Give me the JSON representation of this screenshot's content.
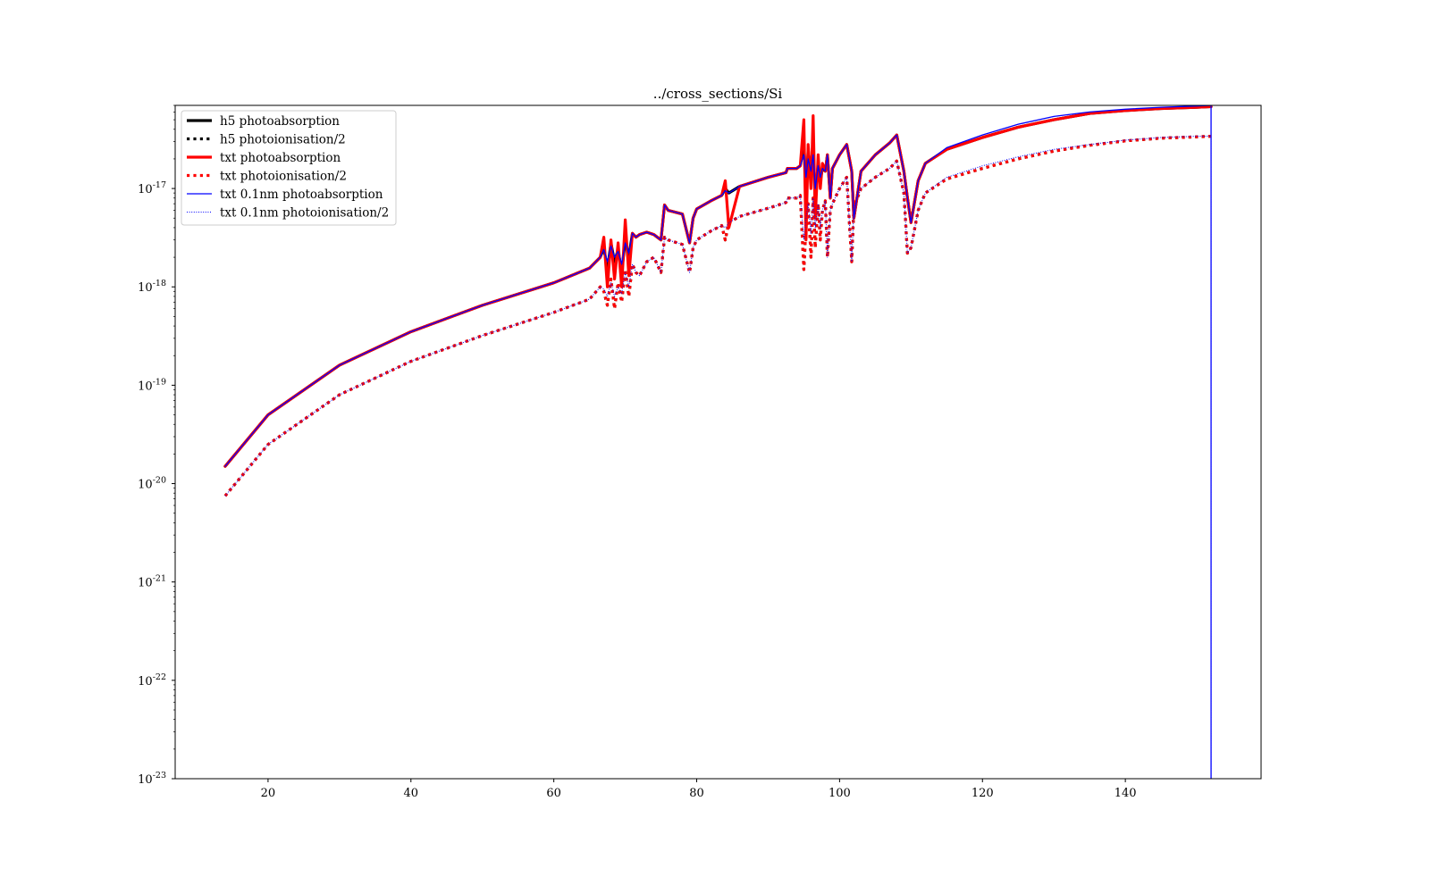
{
  "chart_data": {
    "type": "line",
    "title": "../cross_sections/Si",
    "xlabel": "",
    "ylabel": "",
    "xlim": [
      7,
      159
    ],
    "ylim": [
      1e-23,
      7e-17
    ],
    "yscale": "log",
    "grid": false,
    "legend_position": "upper-left",
    "x_ticks": [
      20,
      40,
      60,
      80,
      100,
      120,
      140
    ],
    "x_tick_labels": [
      "20",
      "40",
      "60",
      "80",
      "100",
      "120",
      "140"
    ],
    "y_ticks": [
      1e-23,
      1e-22,
      1e-21,
      1e-20,
      1e-19,
      1e-18,
      1e-17
    ],
    "y_tick_labels": [
      {
        "base": "10",
        "exp": "-23"
      },
      {
        "base": "10",
        "exp": "-22"
      },
      {
        "base": "10",
        "exp": "-21"
      },
      {
        "base": "10",
        "exp": "-20"
      },
      {
        "base": "10",
        "exp": "-19"
      },
      {
        "base": "10",
        "exp": "-18"
      },
      {
        "base": "10",
        "exp": "-17"
      }
    ],
    "series": [
      {
        "name": "h5 photoabsorption",
        "color": "#000000",
        "style": "solid",
        "x": [
          14,
          20,
          30,
          40,
          50,
          60,
          65,
          66.5,
          67,
          67.5,
          68,
          68.5,
          69,
          69.5,
          70,
          70.5,
          71,
          71.5,
          72,
          73,
          74,
          75,
          75.5,
          76,
          78,
          79,
          79.5,
          80,
          82,
          83.5,
          84,
          84.5,
          86,
          90,
          92.5,
          92.7,
          94,
          94.5,
          95,
          95.3,
          95.6,
          96,
          96.3,
          96.6,
          97,
          97.3,
          97.6,
          98,
          98.3,
          98.7,
          99,
          100,
          101,
          101.7,
          102,
          103,
          105,
          107,
          108,
          109,
          109.5,
          110,
          111,
          112,
          115,
          120,
          125,
          130,
          135,
          140,
          145,
          150,
          152
        ],
        "y": [
          1.5e-20,
          5e-20,
          1.6e-19,
          3.5e-19,
          6.5e-19,
          1.1e-18,
          1.55e-18,
          2e-18,
          2.5e-18,
          1.5e-18,
          2.8e-18,
          1.8e-18,
          2.4e-18,
          1.4e-18,
          3e-18,
          2e-18,
          3.5e-18,
          3.2e-18,
          3.4e-18,
          3.6e-18,
          3.4e-18,
          3e-18,
          6.8e-18,
          6e-18,
          5.5e-18,
          2.8e-18,
          5e-18,
          6.2e-18,
          7.5e-18,
          8.5e-18,
          1e-17,
          9e-18,
          1.05e-17,
          1.3e-17,
          1.45e-17,
          1.6e-17,
          1.6e-17,
          1.7e-17,
          3e-17,
          8e-18,
          2.5e-17,
          1.4e-17,
          2.8e-17,
          7e-18,
          1.8e-17,
          1.2e-17,
          1.6e-17,
          1.5e-17,
          2.2e-17,
          8e-18,
          1.6e-17,
          2.2e-17,
          2.8e-17,
          1.5e-17,
          5e-18,
          1.5e-17,
          2.2e-17,
          2.9e-17,
          3.5e-17,
          1.5e-17,
          8e-18,
          4.5e-18,
          1.2e-17,
          1.8e-17,
          2.5e-17,
          3.3e-17,
          4.2e-17,
          5e-17,
          5.8e-17,
          6.2e-17,
          6.5e-17,
          6.7e-17,
          6.8e-17
        ]
      },
      {
        "name": "h5 photoionisation/2",
        "color": "#000000",
        "style": "dotted",
        "x": [
          14,
          20,
          30,
          40,
          50,
          60,
          65,
          66.5,
          67,
          67.5,
          68,
          68.5,
          69,
          69.5,
          70,
          70.5,
          71,
          71.5,
          72,
          73,
          74,
          75,
          75.5,
          76,
          78,
          79,
          79.5,
          80,
          82,
          83.5,
          84,
          84.5,
          86,
          90,
          92.5,
          92.7,
          94,
          94.5,
          95,
          95.3,
          95.6,
          96,
          96.3,
          96.6,
          97,
          97.3,
          97.6,
          98,
          98.3,
          98.7,
          99,
          100,
          101,
          101.7,
          102,
          103,
          105,
          107,
          108,
          109,
          109.5,
          110,
          111,
          112,
          115,
          120,
          125,
          130,
          135,
          140,
          145,
          150,
          152
        ],
        "y": [
          7.5e-21,
          2.5e-20,
          8e-20,
          1.75e-19,
          3.2e-19,
          5.5e-19,
          7.5e-19,
          1e-18,
          9e-19,
          6.5e-19,
          1.2e-18,
          6e-19,
          1.1e-18,
          7e-19,
          1.5e-18,
          8e-19,
          1.7e-18,
          1.4e-18,
          1.3e-18,
          1.8e-18,
          2e-18,
          1.4e-18,
          3.2e-18,
          3e-18,
          2.7e-18,
          1.4e-18,
          2.5e-18,
          3e-18,
          3.7e-18,
          4.2e-18,
          3e-18,
          4.5e-18,
          5.2e-18,
          6.3e-18,
          7.2e-18,
          8e-18,
          8e-18,
          8.5e-18,
          1.5e-18,
          4e-18,
          7e-18,
          2e-18,
          8e-18,
          2.5e-18,
          7e-18,
          3e-18,
          6e-18,
          7.5e-18,
          2e-18,
          6e-18,
          7e-18,
          1e-17,
          1.3e-17,
          1.8e-18,
          6.5e-18,
          1e-17,
          1.3e-17,
          1.6e-17,
          1.9e-17,
          9e-18,
          2.2e-18,
          2.5e-18,
          6e-18,
          9e-18,
          1.25e-17,
          1.6e-17,
          2e-17,
          2.4e-17,
          2.75e-17,
          3.05e-17,
          3.25e-17,
          3.35e-17,
          3.4e-17
        ]
      },
      {
        "name": "txt photoabsorption",
        "color": "#ff0000",
        "style": "solid",
        "x": [
          14,
          20,
          30,
          40,
          50,
          60,
          65,
          66.5,
          67,
          67.5,
          68,
          68.5,
          69,
          69.5,
          70,
          70.5,
          71,
          71.5,
          72,
          73,
          74,
          75,
          75.5,
          76,
          78,
          79,
          79.5,
          80,
          82,
          83.5,
          84,
          84.5,
          86,
          90,
          92.5,
          92.7,
          94,
          94.5,
          95,
          95.3,
          95.6,
          96,
          96.3,
          96.6,
          97,
          97.3,
          97.6,
          98,
          98.3,
          98.7,
          99,
          100,
          101,
          101.7,
          102,
          103,
          105,
          107,
          108,
          109,
          109.5,
          110,
          111,
          112,
          115,
          120,
          125,
          130,
          135,
          140,
          145,
          150,
          152
        ],
        "y": [
          1.5e-20,
          5e-20,
          1.6e-19,
          3.5e-19,
          6.5e-19,
          1.1e-18,
          1.55e-18,
          2e-18,
          3.2e-18,
          1e-18,
          3e-18,
          1.2e-18,
          2.8e-18,
          1e-18,
          4.8e-18,
          1.3e-18,
          3.5e-18,
          3.2e-18,
          3.4e-18,
          3.6e-18,
          3.4e-18,
          3e-18,
          6.8e-18,
          6e-18,
          5.5e-18,
          2.8e-18,
          5e-18,
          6.2e-18,
          7.5e-18,
          8.5e-18,
          1.2e-17,
          4e-18,
          1.05e-17,
          1.3e-17,
          1.45e-17,
          1.6e-17,
          1.6e-17,
          1.7e-17,
          5e-17,
          3e-18,
          2.8e-17,
          1e-17,
          5.5e-17,
          5e-18,
          2.2e-17,
          1e-17,
          1.8e-17,
          1.5e-17,
          2.2e-17,
          8e-18,
          1.6e-17,
          2.2e-17,
          2.8e-17,
          1.5e-17,
          5e-18,
          1.5e-17,
          2.2e-17,
          2.9e-17,
          3.5e-17,
          1.5e-17,
          8e-18,
          4.5e-18,
          1.2e-17,
          1.8e-17,
          2.5e-17,
          3.3e-17,
          4.2e-17,
          5e-17,
          5.8e-17,
          6.2e-17,
          6.5e-17,
          6.7e-17,
          6.8e-17
        ]
      },
      {
        "name": "txt photoionisation/2",
        "color": "#ff0000",
        "style": "dotted",
        "x": [
          14,
          20,
          30,
          40,
          50,
          60,
          65,
          66.5,
          67,
          67.5,
          68,
          68.5,
          69,
          69.5,
          70,
          70.5,
          71,
          71.5,
          72,
          73,
          74,
          75,
          75.5,
          76,
          78,
          79,
          79.5,
          80,
          82,
          83.5,
          84,
          84.5,
          86,
          90,
          92.5,
          92.7,
          94,
          94.5,
          95,
          95.3,
          95.6,
          96,
          96.3,
          96.6,
          97,
          97.3,
          97.6,
          98,
          98.3,
          98.7,
          99,
          100,
          101,
          101.7,
          102,
          103,
          105,
          107,
          108,
          109,
          109.5,
          110,
          111,
          112,
          115,
          120,
          125,
          130,
          135,
          140,
          145,
          150,
          152
        ],
        "y": [
          7.5e-21,
          2.5e-20,
          8e-20,
          1.75e-19,
          3.2e-19,
          5.5e-19,
          7.5e-19,
          1e-18,
          9e-19,
          6.5e-19,
          1.2e-18,
          6e-19,
          1.1e-18,
          7e-19,
          1.5e-18,
          8e-19,
          1.7e-18,
          1.4e-18,
          1.3e-18,
          1.8e-18,
          2e-18,
          1.4e-18,
          3.2e-18,
          3e-18,
          2.7e-18,
          1.4e-18,
          2.5e-18,
          3e-18,
          3.7e-18,
          4.2e-18,
          3e-18,
          4.5e-18,
          5.2e-18,
          6.3e-18,
          7.2e-18,
          8e-18,
          8e-18,
          8.5e-18,
          1.5e-18,
          4e-18,
          7e-18,
          2e-18,
          8e-18,
          2.5e-18,
          7e-18,
          3e-18,
          6e-18,
          7.5e-18,
          2e-18,
          6e-18,
          7e-18,
          1e-17,
          1.3e-17,
          1.8e-18,
          6.5e-18,
          1e-17,
          1.3e-17,
          1.6e-17,
          1.9e-17,
          9e-18,
          2.2e-18,
          2.5e-18,
          6e-18,
          9e-18,
          1.25e-17,
          1.6e-17,
          2e-17,
          2.4e-17,
          2.75e-17,
          3.05e-17,
          3.25e-17,
          3.35e-17,
          3.4e-17
        ]
      },
      {
        "name": "txt 0.1nm photoabsorption",
        "color": "#0000ff",
        "style": "solid",
        "x": [
          14,
          20,
          30,
          40,
          50,
          60,
          65,
          66.5,
          67,
          67.5,
          68,
          68.5,
          69,
          69.5,
          70,
          70.5,
          71,
          71.5,
          72,
          73,
          74,
          75,
          75.5,
          76,
          78,
          79,
          79.5,
          80,
          82,
          83.5,
          84,
          84.5,
          86,
          90,
          92.5,
          92.7,
          94,
          94.5,
          95,
          95.3,
          95.6,
          96,
          96.3,
          96.6,
          97,
          97.3,
          97.6,
          98,
          98.3,
          98.7,
          99,
          100,
          101,
          101.7,
          102,
          103,
          105,
          107,
          108,
          109,
          109.5,
          110,
          111,
          112,
          115,
          120,
          125,
          130,
          135,
          140,
          145,
          150,
          152,
          152,
          152
        ],
        "y": [
          1.5e-20,
          5e-20,
          1.6e-19,
          3.5e-19,
          6.5e-19,
          1.1e-18,
          1.55e-18,
          2e-18,
          2.4e-18,
          1.8e-18,
          2.6e-18,
          2e-18,
          2.3e-18,
          1.7e-18,
          2.8e-18,
          2.2e-18,
          3.5e-18,
          3.2e-18,
          3.4e-18,
          3.6e-18,
          3.4e-18,
          3e-18,
          6.8e-18,
          6e-18,
          5.5e-18,
          2.8e-18,
          5e-18,
          6.2e-18,
          7.5e-18,
          8.5e-18,
          9.5e-18,
          9e-18,
          1.05e-17,
          1.3e-17,
          1.45e-17,
          1.6e-17,
          1.6e-17,
          1.7e-17,
          2.2e-17,
          1.3e-17,
          2e-17,
          1.5e-17,
          2.2e-17,
          1e-17,
          1.7e-17,
          1.3e-17,
          1.6e-17,
          1.5e-17,
          2.2e-17,
          8e-18,
          1.6e-17,
          2.2e-17,
          2.8e-17,
          1.5e-17,
          5e-18,
          1.5e-17,
          2.2e-17,
          2.9e-17,
          3.5e-17,
          1.5e-17,
          8e-18,
          4.5e-18,
          1.2e-17,
          1.8e-17,
          2.6e-17,
          3.5e-17,
          4.5e-17,
          5.4e-17,
          6e-17,
          6.4e-17,
          6.7e-17,
          6.9e-17,
          7e-17,
          7e-17,
          1e-23
        ]
      },
      {
        "name": "txt 0.1nm photoionisation/2",
        "color": "#0000ff",
        "style": "thin-dotted",
        "x": [
          14,
          20,
          30,
          40,
          50,
          60,
          65,
          66.5,
          67,
          67.5,
          68,
          68.5,
          69,
          69.5,
          70,
          70.5,
          71,
          71.5,
          72,
          73,
          74,
          75,
          75.5,
          76,
          78,
          79,
          79.5,
          80,
          82,
          83.5,
          84,
          84.5,
          86,
          90,
          92.5,
          92.7,
          94,
          94.5,
          95,
          95.3,
          95.6,
          96,
          96.3,
          96.6,
          97,
          97.3,
          97.6,
          98,
          98.3,
          98.7,
          99,
          100,
          101,
          101.7,
          102,
          103,
          105,
          107,
          108,
          109,
          109.5,
          110,
          111,
          112,
          115,
          120,
          125,
          130,
          135,
          140,
          145,
          150,
          152,
          152
        ],
        "y": [
          7.5e-21,
          2.5e-20,
          8e-20,
          1.75e-19,
          3.2e-19,
          5.5e-19,
          7.5e-19,
          1e-18,
          9.5e-19,
          8e-19,
          1.1e-18,
          8e-19,
          1e-18,
          8.5e-19,
          1.4e-18,
          1e-18,
          1.7e-18,
          1.4e-18,
          1.3e-18,
          1.8e-18,
          2e-18,
          1.4e-18,
          3.2e-18,
          3e-18,
          2.7e-18,
          1.4e-18,
          2.5e-18,
          3e-18,
          3.7e-18,
          4.2e-18,
          4e-18,
          4.5e-18,
          5.2e-18,
          6.3e-18,
          7.2e-18,
          8e-18,
          8e-18,
          8.5e-18,
          3e-18,
          5e-18,
          7e-18,
          3.5e-18,
          8e-18,
          4e-18,
          7e-18,
          4e-18,
          6e-18,
          7.5e-18,
          2e-18,
          6e-18,
          7e-18,
          1e-17,
          1.3e-17,
          1.8e-18,
          6.5e-18,
          1e-17,
          1.3e-17,
          1.6e-17,
          1.9e-17,
          9e-18,
          2.2e-18,
          2.5e-18,
          6e-18,
          9e-18,
          1.3e-17,
          1.7e-17,
          2.1e-17,
          2.5e-17,
          2.8e-17,
          3.1e-17,
          3.3e-17,
          3.4e-17,
          3.4e-17,
          1e-23
        ]
      }
    ]
  }
}
